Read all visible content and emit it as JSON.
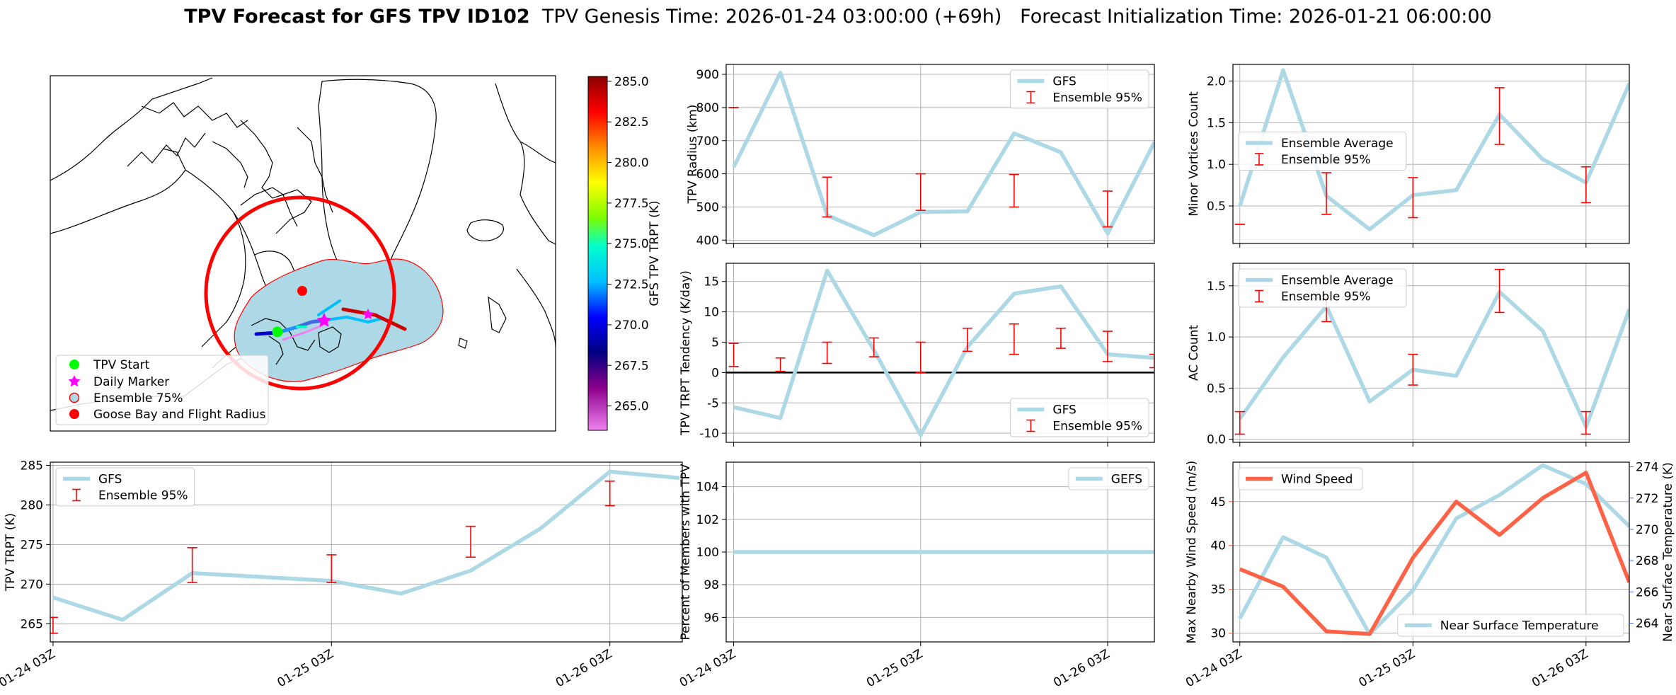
{
  "header": {
    "bold": "TPV Forecast for GFS TPV ID102",
    "rest": "  TPV Genesis Time: 2026-01-24 03:00:00 (+69h)   Forecast Initialization Time: 2026-01-21 06:00:00"
  },
  "colors": {
    "gfs": "#add8e6",
    "ensemble": "#ff0000",
    "wind": "#ff6347",
    "temp_axis": "#4169e1",
    "zero": "#000000"
  },
  "map": {
    "legend": [
      "TPV Start",
      "Daily Marker",
      "Ensemble 75%",
      "Goose Bay and Flight Radius"
    ],
    "colorbar": {
      "label": "GFS TPV TRPT (K)",
      "min": 263.5,
      "max": 285.3,
      "ticks": [
        265.0,
        267.5,
        270.0,
        272.5,
        275.0,
        277.5,
        280.0,
        282.5,
        285.0
      ]
    }
  },
  "chart_data": [
    {
      "id": "radius",
      "type": "line",
      "ylabel": "TPV Radius (km)",
      "ylim": [
        390,
        930
      ],
      "yticks": [
        400,
        500,
        600,
        700,
        800,
        900
      ],
      "x": [
        0,
        0.25,
        0.5,
        0.75,
        1,
        1.25,
        1.5,
        1.75,
        2,
        2.25
      ],
      "series": [
        {
          "name": "GFS",
          "values": [
            620,
            905,
            475,
            415,
            485,
            487,
            722,
            665,
            420,
            695
          ]
        }
      ],
      "errorbars": {
        "name": "Ensemble 95%",
        "x": [
          0,
          0.5,
          1,
          1.5,
          2
        ],
        "low": [
          800,
          470,
          490,
          500,
          440
        ],
        "high": [
          800,
          590,
          600,
          598,
          548
        ]
      },
      "legend": "top-right"
    },
    {
      "id": "minor",
      "type": "line",
      "ylabel": "Minor Vortices Count",
      "ylim": [
        0.05,
        2.2
      ],
      "yticks": [
        0.5,
        1.0,
        1.5,
        2.0
      ],
      "ytick_labels": [
        "0.5",
        "1.0",
        "1.5",
        "2.0"
      ],
      "x": [
        0,
        0.25,
        0.5,
        0.75,
        1,
        1.25,
        1.5,
        1.75,
        2,
        2.25
      ],
      "series": [
        {
          "name": "Ensemble Average",
          "values": [
            0.5,
            2.13,
            0.62,
            0.22,
            0.63,
            0.69,
            1.6,
            1.06,
            0.78,
            1.97
          ]
        }
      ],
      "errorbars": {
        "name": "Ensemble 95%",
        "x": [
          0,
          0.5,
          1,
          1.5,
          2
        ],
        "low": [
          0.28,
          0.4,
          0.36,
          1.24,
          0.54
        ],
        "high": [
          0.28,
          0.9,
          0.84,
          1.92,
          0.97
        ]
      },
      "legend": "center-left"
    },
    {
      "id": "tendency",
      "type": "line",
      "ylabel": "TPV TRPT Tendency (K/day)",
      "ylim": [
        -11.5,
        18
      ],
      "yticks": [
        -10,
        -5,
        0,
        5,
        10,
        15
      ],
      "x": [
        0,
        0.25,
        0.5,
        0.75,
        1,
        1.25,
        1.5,
        1.75,
        2,
        2.25
      ],
      "series": [
        {
          "name": "GFS",
          "values": [
            -5.7,
            -7.5,
            16.8,
            3.7,
            -10.3,
            4.2,
            13.0,
            14.2,
            3.0,
            2.4
          ]
        }
      ],
      "errorbars": {
        "name": "Ensemble 95%",
        "x": [
          0,
          0.25,
          0.5,
          0.75,
          1,
          1.25,
          1.5,
          1.75,
          2,
          2.25
        ],
        "low": [
          1.0,
          0.2,
          1.5,
          2.6,
          0.0,
          3.5,
          3.0,
          4.0,
          1.8,
          0.8
        ],
        "high": [
          4.8,
          2.4,
          5.0,
          5.7,
          5.0,
          7.3,
          8.0,
          7.3,
          6.8,
          3.0
        ]
      },
      "hline": 0,
      "legend": "bottom-right"
    },
    {
      "id": "ac",
      "type": "line",
      "ylabel": "AC Count",
      "ylim": [
        -0.03,
        1.72
      ],
      "yticks": [
        0.0,
        0.5,
        1.0,
        1.5
      ],
      "ytick_labels": [
        "0.0",
        "0.5",
        "1.0",
        "1.5"
      ],
      "x": [
        0,
        0.25,
        0.5,
        0.75,
        1,
        1.25,
        1.5,
        1.75,
        2,
        2.25
      ],
      "series": [
        {
          "name": "Ensemble Average",
          "values": [
            0.2,
            0.8,
            1.3,
            0.37,
            0.68,
            0.62,
            1.44,
            1.06,
            0.12,
            1.27
          ]
        }
      ],
      "errorbars": {
        "name": "Ensemble 95%",
        "x": [
          0,
          0.5,
          1,
          1.5,
          2
        ],
        "low": [
          0.05,
          1.15,
          0.53,
          1.24,
          0.05
        ],
        "high": [
          0.27,
          1.37,
          0.83,
          1.66,
          0.27
        ]
      },
      "legend": "top-left"
    },
    {
      "id": "trpt",
      "type": "line",
      "ylabel": "TPV TRPT (K)",
      "ylim": [
        262.7,
        285.4
      ],
      "yticks": [
        265,
        270,
        275,
        280,
        285
      ],
      "x": [
        0,
        0.25,
        0.5,
        0.75,
        1,
        1.25,
        1.5,
        1.75,
        2,
        2.25
      ],
      "series": [
        {
          "name": "GFS",
          "values": [
            268.3,
            265.5,
            271.4,
            270.9,
            270.4,
            268.8,
            271.7,
            277.0,
            284.2,
            283.4
          ]
        }
      ],
      "errorbars": {
        "name": "Ensemble 95%",
        "x": [
          0,
          0.5,
          1,
          1.5,
          2
        ],
        "low": [
          263.8,
          270.2,
          270.2,
          273.4,
          279.9
        ],
        "high": [
          265.8,
          274.6,
          273.7,
          277.3,
          283.0
        ]
      },
      "legend": "top-left"
    },
    {
      "id": "percent",
      "type": "line",
      "ylabel": "Percent of Members with TPV",
      "ylim": [
        94.5,
        105.5
      ],
      "yticks": [
        96,
        98,
        100,
        102,
        104
      ],
      "x": [
        0,
        0.25,
        0.5,
        0.75,
        1,
        1.25,
        1.5,
        1.75,
        2,
        2.25
      ],
      "series": [
        {
          "name": "GEFS",
          "values": [
            100,
            100,
            100,
            100,
            100,
            100,
            100,
            100,
            100,
            100
          ]
        }
      ],
      "legend": "top-right"
    },
    {
      "id": "wind",
      "type": "line",
      "ylabel": "Max Nearby Wind Speed (m/s)",
      "ylim": [
        29,
        49.5
      ],
      "yticks": [
        30,
        35,
        40,
        45
      ],
      "y2label": "Near Surface Temperature (K)",
      "y2lim": [
        262.8,
        274.3
      ],
      "y2ticks": [
        264,
        266,
        268,
        270,
        272,
        274
      ],
      "x": [
        0,
        0.25,
        0.5,
        0.75,
        1,
        1.25,
        1.5,
        1.75,
        2,
        2.25
      ],
      "series": [
        {
          "name": "Wind Speed",
          "axis": "left",
          "values": [
            37.3,
            35.3,
            30.2,
            29.9,
            38.6,
            45.0,
            41.2,
            45.4,
            48.3,
            35.8
          ]
        },
        {
          "name": "Near Surface Temperature",
          "axis": "right",
          "values": [
            264.3,
            269.5,
            268.2,
            263.3,
            266.1,
            270.7,
            272.2,
            274.1,
            272.9,
            270.2
          ]
        }
      ],
      "legend": [
        "top-left",
        "bottom-right"
      ]
    }
  ],
  "xaxis": {
    "ticks": [
      0,
      1,
      2
    ],
    "labels": [
      "01-24 03Z",
      "01-25 03Z",
      "01-26 03Z"
    ]
  }
}
